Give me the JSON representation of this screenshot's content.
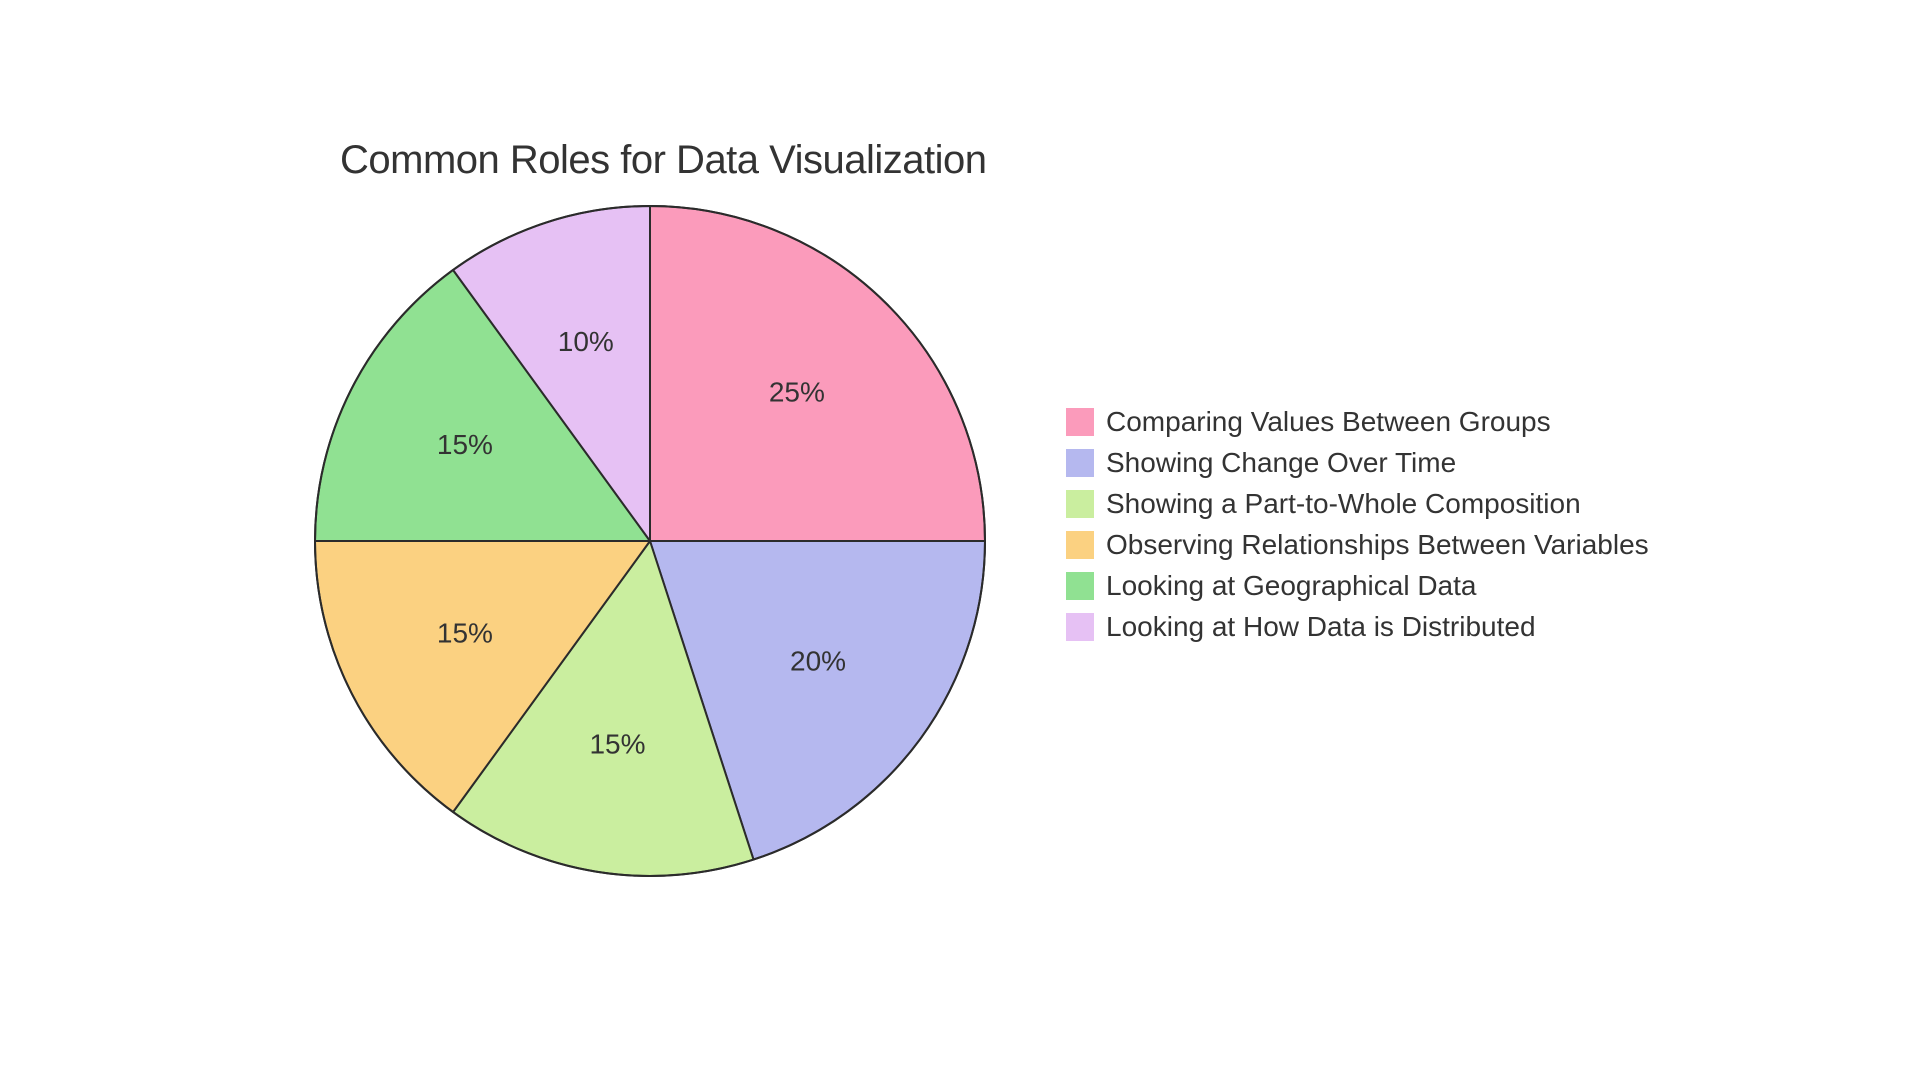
{
  "chart": {
    "type": "pie",
    "title": "Common Roles for Data Visualization",
    "title_fontsize": 40,
    "title_color": "#333333",
    "background_color": "#ffffff",
    "stroke_color": "#2b2b2b",
    "stroke_width": 2,
    "label_fontsize": 28,
    "label_color": "#333333",
    "legend_fontsize": 28,
    "legend_color": "#333333",
    "radius": 335,
    "label_radius_factor": 0.62,
    "slices": [
      {
        "label": "Comparing Values Between Groups",
        "value": 25,
        "pct_label": "25%",
        "color": "#fb9bbb"
      },
      {
        "label": "Showing Change Over Time",
        "value": 20,
        "pct_label": "20%",
        "color": "#b5b8ef"
      },
      {
        "label": "Showing a Part-to-Whole Composition",
        "value": 15,
        "pct_label": "15%",
        "color": "#caee9f"
      },
      {
        "label": "Observing Relationships Between Variables",
        "value": 15,
        "pct_label": "15%",
        "color": "#fbd181"
      },
      {
        "label": "Looking at Geographical Data",
        "value": 15,
        "pct_label": "15%",
        "color": "#90e192"
      },
      {
        "label": "Looking at How Data is Distributed",
        "value": 10,
        "pct_label": "10%",
        "color": "#e6c1f4"
      }
    ]
  }
}
